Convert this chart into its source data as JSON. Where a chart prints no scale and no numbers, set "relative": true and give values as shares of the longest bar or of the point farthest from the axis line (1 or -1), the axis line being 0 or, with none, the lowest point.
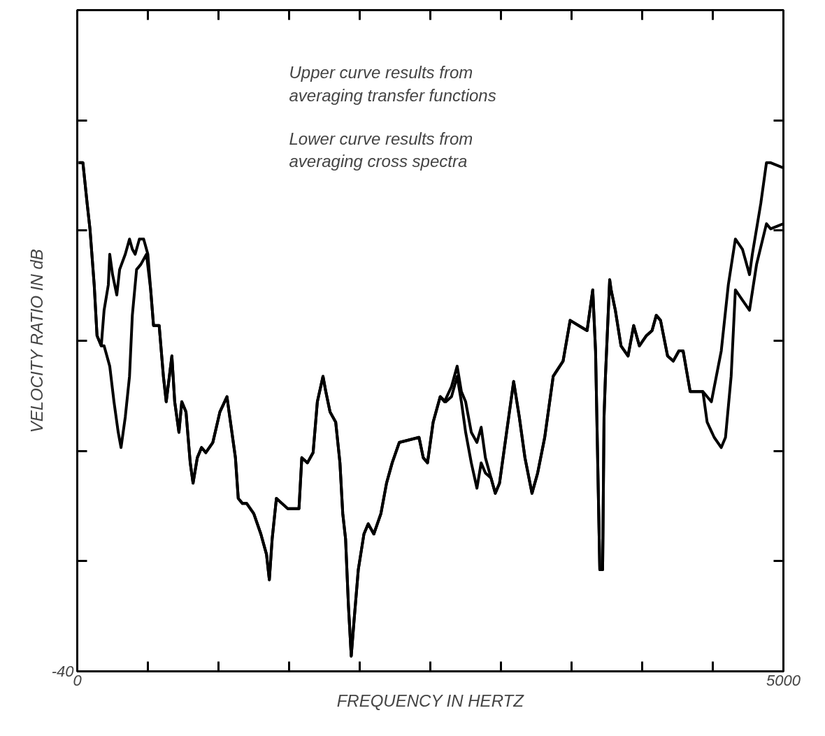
{
  "chart_data": {
    "type": "line",
    "relative": true,
    "xlabel": "FREQUENCY IN HERTZ",
    "ylabel": "VELOCITY RATIO IN dB",
    "annotations": [
      "Upper curve results from\n  averaging transfer functions",
      "Lower curve results from\n  averaging cross spectra",
      "-40"
    ],
    "xlim": [
      0,
      5000
    ],
    "xticks": [
      0,
      {
        "value": 500,
        "label": null
      },
      {
        "value": 1000,
        "label": null
      },
      {
        "value": 1500,
        "label": null
      },
      {
        "value": 2000,
        "label": null
      },
      {
        "value": 2500,
        "label": null
      },
      {
        "value": 3000,
        "label": null
      },
      {
        "value": 3500,
        "label": null
      },
      {
        "value": 4000,
        "label": null
      },
      {
        "value": 4500,
        "label": null
      },
      5000
    ],
    "grid": false,
    "marker": "none",
    "line_style": "solid",
    "series": [
      {
        "color": "#000000",
        "x": [
          10,
          40,
          70,
          90,
          120,
          140,
          170,
          190,
          220,
          230,
          250,
          280,
          300,
          340,
          370,
          390,
          410,
          440,
          470,
          500,
          520,
          540,
          560,
          580,
          610,
          630,
          670,
          690,
          720,
          740,
          770,
          800,
          820,
          850,
          880,
          910,
          960,
          1010,
          1060,
          1080,
          1120,
          1140,
          1170,
          1200,
          1250,
          1300,
          1340,
          1360,
          1380,
          1410,
          1450,
          1490,
          1570,
          1590,
          1630,
          1670,
          1700,
          1740,
          1760,
          1790,
          1830,
          1860,
          1880,
          1900,
          1920,
          1940,
          1960,
          1990,
          2030,
          2060,
          2100,
          2150,
          2190,
          2230,
          2280,
          2420,
          2450,
          2480,
          2520,
          2570,
          2600,
          2650,
          2690,
          2720,
          2750,
          2790,
          2830,
          2860,
          2890,
          2930,
          2960,
          2990,
          3040,
          3090,
          3130,
          3170,
          3220,
          3260,
          3310,
          3370,
          3440,
          3490,
          3550,
          3610,
          3650,
          3670,
          3700,
          3720,
          3730,
          3740,
          3770,
          3780,
          3810,
          3850,
          3900,
          3940,
          3980,
          4030,
          4070,
          4100,
          4130,
          4180,
          4220,
          4260,
          4290,
          4340,
          4390,
          4430,
          4490,
          4560,
          4610,
          4660,
          4710,
          4760,
          4780,
          4840,
          4880,
          4910,
          5000
        ],
        "values": [
          1.0,
          1.0,
          0.92,
          0.87,
          0.76,
          0.66,
          0.64,
          0.71,
          0.76,
          0.82,
          0.78,
          0.74,
          0.79,
          0.82,
          0.85,
          0.83,
          0.82,
          0.85,
          0.85,
          0.82,
          0.75,
          0.68,
          0.68,
          0.68,
          0.58,
          0.53,
          0.62,
          0.53,
          0.47,
          0.53,
          0.51,
          0.41,
          0.37,
          0.42,
          0.44,
          0.43,
          0.45,
          0.51,
          0.54,
          0.5,
          0.42,
          0.34,
          0.33,
          0.33,
          0.31,
          0.27,
          0.23,
          0.18,
          0.26,
          0.34,
          0.33,
          0.32,
          0.32,
          0.42,
          0.41,
          0.43,
          0.53,
          0.58,
          0.55,
          0.51,
          0.49,
          0.41,
          0.31,
          0.26,
          0.13,
          0.03,
          0.1,
          0.2,
          0.27,
          0.29,
          0.27,
          0.31,
          0.37,
          0.41,
          0.45,
          0.46,
          0.42,
          0.41,
          0.49,
          0.54,
          0.53,
          0.56,
          0.6,
          0.55,
          0.53,
          0.47,
          0.45,
          0.48,
          0.42,
          0.38,
          0.35,
          0.37,
          0.47,
          0.57,
          0.5,
          0.42,
          0.35,
          0.39,
          0.46,
          0.58,
          0.61,
          0.69,
          0.68,
          0.67,
          0.75,
          0.63,
          0.2,
          0.2,
          0.5,
          0.58,
          0.77,
          0.75,
          0.71,
          0.64,
          0.62,
          0.68,
          0.64,
          0.66,
          0.67,
          0.7,
          0.69,
          0.62,
          0.61,
          0.63,
          0.63,
          0.55,
          0.55,
          0.55,
          0.53,
          0.63,
          0.76,
          0.85,
          0.83,
          0.78,
          0.82,
          0.92,
          1.0,
          1.0,
          0.99
        ]
      },
      {
        "color": "#000000",
        "x": [
          10,
          40,
          70,
          90,
          120,
          140,
          170,
          190,
          230,
          260,
          290,
          310,
          340,
          370,
          390,
          420,
          450,
          490,
          520,
          540,
          560,
          580,
          610,
          630,
          670,
          690,
          720,
          740,
          770,
          800,
          820,
          850,
          880,
          910,
          960,
          1010,
          1060,
          1080,
          1120,
          1140,
          1170,
          1200,
          1250,
          1300,
          1340,
          1360,
          1380,
          1410,
          1450,
          1490,
          1570,
          1590,
          1630,
          1670,
          1700,
          1740,
          1760,
          1790,
          1830,
          1860,
          1880,
          1900,
          1920,
          1940,
          1960,
          1990,
          2030,
          2060,
          2100,
          2150,
          2190,
          2230,
          2280,
          2420,
          2450,
          2480,
          2520,
          2570,
          2610,
          2650,
          2690,
          2720,
          2750,
          2790,
          2830,
          2860,
          2890,
          2930,
          2960,
          2990,
          3040,
          3090,
          3130,
          3170,
          3220,
          3260,
          3310,
          3370,
          3440,
          3490,
          3550,
          3610,
          3650,
          3670,
          3700,
          3720,
          3730,
          3740,
          3770,
          3780,
          3810,
          3850,
          3900,
          3940,
          3980,
          4030,
          4070,
          4100,
          4130,
          4180,
          4220,
          4260,
          4290,
          4340,
          4390,
          4430,
          4460,
          4510,
          4560,
          4590,
          4630,
          4660,
          4710,
          4760,
          4810,
          4880,
          4910,
          5000
        ],
        "values": [
          1.0,
          1.0,
          0.92,
          0.87,
          0.76,
          0.66,
          0.64,
          0.64,
          0.6,
          0.53,
          0.47,
          0.44,
          0.5,
          0.58,
          0.7,
          0.79,
          0.8,
          0.82,
          0.75,
          0.68,
          0.68,
          0.68,
          0.58,
          0.53,
          0.62,
          0.53,
          0.47,
          0.53,
          0.51,
          0.41,
          0.37,
          0.42,
          0.44,
          0.43,
          0.45,
          0.51,
          0.54,
          0.5,
          0.42,
          0.34,
          0.33,
          0.33,
          0.31,
          0.27,
          0.23,
          0.18,
          0.26,
          0.34,
          0.33,
          0.32,
          0.32,
          0.42,
          0.41,
          0.43,
          0.53,
          0.58,
          0.55,
          0.51,
          0.49,
          0.41,
          0.31,
          0.26,
          0.13,
          0.03,
          0.1,
          0.2,
          0.27,
          0.29,
          0.27,
          0.31,
          0.37,
          0.41,
          0.45,
          0.46,
          0.42,
          0.41,
          0.49,
          0.54,
          0.53,
          0.54,
          0.58,
          0.53,
          0.47,
          0.41,
          0.36,
          0.41,
          0.39,
          0.38,
          0.35,
          0.37,
          0.47,
          0.57,
          0.5,
          0.42,
          0.35,
          0.39,
          0.46,
          0.58,
          0.61,
          0.69,
          0.68,
          0.67,
          0.75,
          0.63,
          0.2,
          0.2,
          0.5,
          0.58,
          0.77,
          0.75,
          0.71,
          0.64,
          0.62,
          0.68,
          0.64,
          0.66,
          0.67,
          0.7,
          0.69,
          0.62,
          0.61,
          0.63,
          0.63,
          0.55,
          0.55,
          0.55,
          0.49,
          0.46,
          0.44,
          0.46,
          0.58,
          0.75,
          0.73,
          0.71,
          0.8,
          0.88,
          0.87,
          0.88
        ]
      }
    ]
  }
}
